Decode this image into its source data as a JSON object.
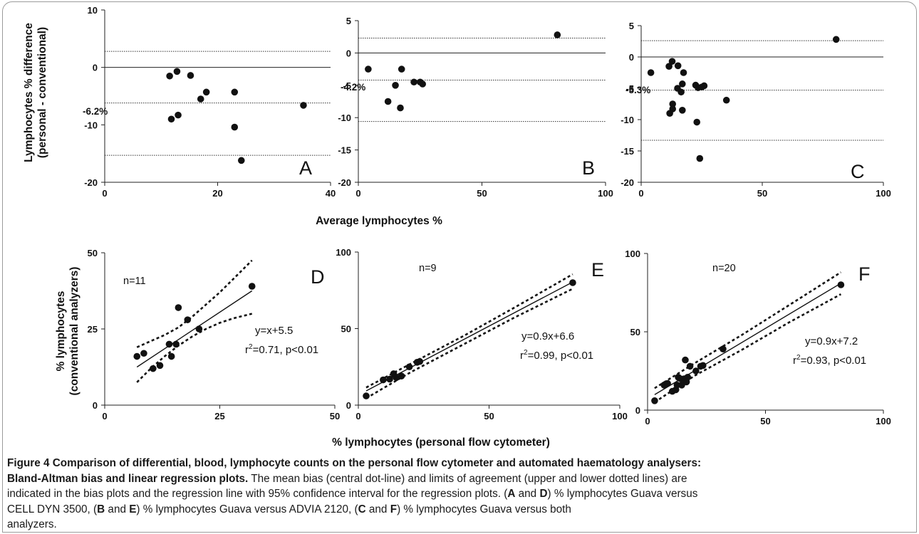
{
  "chart_data": [
    {
      "type": "scatter",
      "panel": "A",
      "xlim": [
        0,
        40
      ],
      "ylim": [
        -20,
        10
      ],
      "xticks": [
        "0",
        "20",
        "40"
      ],
      "yticks": [
        "10",
        "0",
        "-10",
        "-20"
      ],
      "points": [
        [
          11.5,
          -1.5
        ],
        [
          12.8,
          -0.7
        ],
        [
          15.2,
          -1.4
        ],
        [
          11.8,
          -9
        ],
        [
          13,
          -8.3
        ],
        [
          17,
          -5.5
        ],
        [
          18,
          -4.3
        ],
        [
          23,
          -4.3
        ],
        [
          23,
          -10.4
        ],
        [
          24.2,
          -16.2
        ],
        [
          35.2,
          -6.6
        ]
      ],
      "lines": {
        "zero": 0,
        "bias": -6.2,
        "upper": 2.8,
        "lower": -15.3
      },
      "bias_label": "-6.2%"
    },
    {
      "type": "scatter",
      "panel": "B",
      "xlim": [
        0,
        100
      ],
      "ylim": [
        -20,
        5
      ],
      "xticks": [
        "0",
        "50",
        "100"
      ],
      "yticks": [
        "5",
        "0",
        "-5",
        "-10",
        "-15",
        "-20"
      ],
      "points": [
        [
          4,
          -2.5
        ],
        [
          17.5,
          -2.5
        ],
        [
          12,
          -7.5
        ],
        [
          15,
          -5
        ],
        [
          17,
          -8.5
        ],
        [
          22.5,
          -4.5
        ],
        [
          25,
          -4.5
        ],
        [
          26,
          -4.8
        ],
        [
          80.5,
          2.8
        ]
      ],
      "lines": {
        "zero": 0,
        "bias": -4.2,
        "upper": 2.3,
        "lower": -10.6
      },
      "bias_label": "-4.2%"
    },
    {
      "type": "scatter",
      "panel": "C",
      "xlim": [
        0,
        100
      ],
      "ylim": [
        -20,
        5
      ],
      "xticks": [
        "0",
        "50",
        "100"
      ],
      "yticks": [
        "5",
        "0",
        "-5",
        "-10",
        "-15",
        "-20"
      ],
      "points": [
        [
          4,
          -2.5
        ],
        [
          11.5,
          -1.5
        ],
        [
          12.8,
          -0.7
        ],
        [
          15.2,
          -1.4
        ],
        [
          17.5,
          -2.5
        ],
        [
          11.8,
          -9
        ],
        [
          13,
          -7.5
        ],
        [
          13,
          -8.3
        ],
        [
          15,
          -5
        ],
        [
          16.5,
          -5.6
        ],
        [
          17,
          -4.3
        ],
        [
          17,
          -8.5
        ],
        [
          22.5,
          -4.5
        ],
        [
          23,
          -10.4
        ],
        [
          24.2,
          -16.2
        ],
        [
          23.5,
          -4.9
        ],
        [
          25,
          -4.8
        ],
        [
          26,
          -4.6
        ],
        [
          35.2,
          -6.9
        ],
        [
          80.5,
          2.8
        ]
      ],
      "lines": {
        "zero": 0,
        "bias": -5.3,
        "upper": 2.6,
        "lower": -13.3
      },
      "bias_label": "-5.3%"
    },
    {
      "type": "scatter",
      "panel": "D",
      "xlim": [
        0,
        50
      ],
      "ylim": [
        0,
        50
      ],
      "xticks": [
        "0",
        "25",
        "50"
      ],
      "yticks": [
        "50",
        "25",
        "0"
      ],
      "points": [
        [
          7,
          16
        ],
        [
          8.5,
          17
        ],
        [
          10.5,
          12
        ],
        [
          12,
          13
        ],
        [
          14,
          20
        ],
        [
          14.5,
          16
        ],
        [
          15.5,
          20
        ],
        [
          16,
          32
        ],
        [
          18,
          28
        ],
        [
          20.5,
          25
        ],
        [
          32,
          39
        ]
      ],
      "regression": {
        "slope": 1.0,
        "intercept": 5.5,
        "x_range": [
          7,
          32
        ]
      },
      "ci_upper": [
        [
          7,
          19
        ],
        [
          10,
          21
        ],
        [
          13,
          23
        ],
        [
          16,
          25.5
        ],
        [
          19,
          29
        ],
        [
          22,
          33
        ],
        [
          25,
          37
        ],
        [
          28,
          41.5
        ],
        [
          32,
          47.5
        ]
      ],
      "ci_lower": [
        [
          7,
          7.5
        ],
        [
          10,
          12
        ],
        [
          13,
          16
        ],
        [
          16,
          19.5
        ],
        [
          19,
          22.5
        ],
        [
          22,
          25
        ],
        [
          25,
          27
        ],
        [
          28,
          28.5
        ],
        [
          32,
          30
        ]
      ],
      "n_label": "n=11",
      "eq_label": "y=x+5.5",
      "r2_value": "=0.71, p<0.01"
    },
    {
      "type": "scatter",
      "panel": "E",
      "xlim": [
        0,
        100
      ],
      "ylim": [
        0,
        100
      ],
      "xticks": [
        "0",
        "50",
        "100"
      ],
      "yticks": [
        "100",
        "50",
        "0"
      ],
      "points": [
        [
          3,
          6
        ],
        [
          9.5,
          16.5
        ],
        [
          12,
          17
        ],
        [
          13.5,
          20.5
        ],
        [
          14.5,
          18
        ],
        [
          16.5,
          19
        ],
        [
          19.5,
          25
        ],
        [
          22.5,
          28
        ],
        [
          23.5,
          28.5
        ],
        [
          82,
          80
        ]
      ],
      "regression": {
        "slope": 0.9,
        "intercept": 6.6,
        "x_range": [
          3,
          82
        ]
      },
      "ci_upper": [
        [
          3,
          11.5
        ],
        [
          20,
          27
        ],
        [
          40,
          45
        ],
        [
          60,
          64
        ],
        [
          82,
          85.5
        ]
      ],
      "ci_lower": [
        [
          3,
          4.5
        ],
        [
          20,
          21.5
        ],
        [
          40,
          39.5
        ],
        [
          60,
          57.5
        ],
        [
          82,
          76
        ]
      ],
      "n_label": "n=9",
      "eq_label": "y=0.9x+6.6",
      "r2_value": "=0.99, p<0.01"
    },
    {
      "type": "scatter",
      "panel": "F",
      "xlim": [
        0,
        100
      ],
      "ylim": [
        0,
        100
      ],
      "xticks": [
        "0",
        "50",
        "100"
      ],
      "yticks": [
        "100",
        "50",
        "0"
      ],
      "points": [
        [
          3,
          6
        ],
        [
          7,
          16
        ],
        [
          8.5,
          17
        ],
        [
          10.5,
          12
        ],
        [
          12,
          13
        ],
        [
          12.5,
          16
        ],
        [
          13,
          21
        ],
        [
          14,
          20
        ],
        [
          14.5,
          16
        ],
        [
          15.5,
          20
        ],
        [
          16,
          32
        ],
        [
          16,
          19
        ],
        [
          17,
          21
        ],
        [
          18,
          28
        ],
        [
          20.5,
          25
        ],
        [
          22.5,
          28
        ],
        [
          23.5,
          28.5
        ],
        [
          32,
          39
        ],
        [
          82,
          80
        ],
        [
          16.5,
          18
        ]
      ],
      "regression": {
        "slope": 0.9,
        "intercept": 7.2,
        "x_range": [
          3,
          82
        ]
      },
      "ci_upper": [
        [
          3,
          14
        ],
        [
          20,
          30
        ],
        [
          40,
          48
        ],
        [
          60,
          67
        ],
        [
          82,
          88
        ]
      ],
      "ci_lower": [
        [
          3,
          5
        ],
        [
          20,
          22
        ],
        [
          40,
          38.5
        ],
        [
          60,
          56
        ],
        [
          82,
          74
        ]
      ],
      "n_label": "n=20",
      "eq_label": "y=0.9x+7.2",
      "r2_value": "=0.93, p<0.01"
    }
  ],
  "labels": {
    "top_ylabel_1": "Lymphocytes % difference",
    "top_ylabel_2": "(personal - conventional)",
    "top_xlabel": "Average lymphocytes %",
    "bottom_ylabel_1": "% lymphocytes",
    "bottom_ylabel_2": "(conventional analyzers)",
    "bottom_xlabel": "% lymphocytes (personal flow cytometer)",
    "r2_prefix": "r",
    "r2_sup": "2"
  },
  "caption": {
    "title": "Figure 4 Comparison of differential, blood, lymphocyte counts on the personal flow cytometer and automated haematology analysers:",
    "subtitle": "Bland-Altman bias and linear regression plots.",
    "line2_rest": " The mean bias (central dot-line) and limits of agreement (upper and lower dotted lines) are",
    "line3": "indicated in the bias plots and the regression line with 95% confidence interval for the regression plots. (",
    "l3_A": "A",
    "l3_and1": " and ",
    "l3_D": "D",
    "l3_tail": ") % lymphocytes Guava versus",
    "l4_start": "CELL DYN 3500, (",
    "l4_B": "B",
    "l4_and": " and ",
    "l4_E": "E",
    "l4_mid": ") % lymphocytes Guava versus ADVIA 2120, (",
    "l4_C": "C",
    "l4_and2": " and ",
    "l4_F": "F",
    "l4_tail": ") % lymphocytes Guava versus both",
    "l5": "analyzers."
  }
}
